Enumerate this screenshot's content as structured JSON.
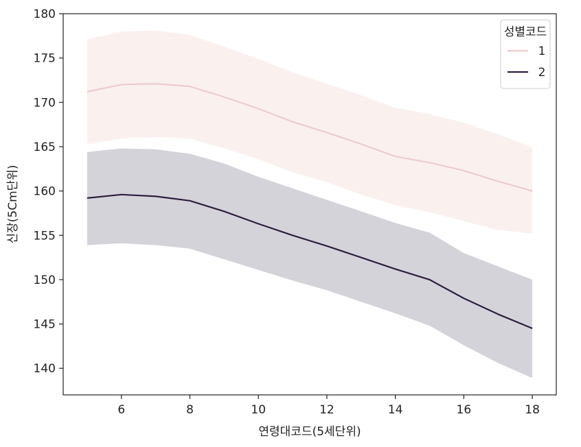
{
  "chart_data": {
    "type": "line",
    "xlabel": "연령대코드(5세단위)",
    "ylabel": "신장(5Cm단위)",
    "xlim": [
      4.3,
      18.7
    ],
    "ylim": [
      137,
      180
    ],
    "xticks": [
      6,
      8,
      10,
      12,
      14,
      16,
      18
    ],
    "yticks": [
      140,
      145,
      150,
      155,
      160,
      165,
      170,
      175,
      180
    ],
    "grid": false,
    "legend": {
      "title": "성별코드",
      "placement": "top-right"
    },
    "x": [
      5,
      6,
      7,
      8,
      9,
      10,
      11,
      12,
      13,
      14,
      15,
      16,
      17,
      18
    ],
    "series": [
      {
        "name": "1",
        "color": "#eccccc",
        "band_color": "#f6e6e2",
        "values": [
          171.2,
          172.0,
          172.1,
          171.8,
          170.6,
          169.3,
          167.8,
          166.6,
          165.3,
          163.9,
          163.2,
          162.3,
          161.1,
          160.0
        ],
        "lower": [
          165.3,
          165.9,
          166.1,
          165.9,
          164.8,
          163.6,
          162.1,
          161.0,
          159.6,
          158.4,
          157.6,
          156.6,
          155.6,
          155.2
        ],
        "upper": [
          177.1,
          178.0,
          178.1,
          177.6,
          176.3,
          174.9,
          173.4,
          172.1,
          170.8,
          169.4,
          168.7,
          167.7,
          166.4,
          164.9
        ]
      },
      {
        "name": "2",
        "color": "#2d1e3e",
        "band_color": "#b3afbb",
        "values": [
          159.2,
          159.6,
          159.4,
          158.9,
          157.7,
          156.3,
          155.0,
          153.8,
          152.5,
          151.2,
          150.0,
          147.9,
          146.1,
          144.5
        ],
        "lower": [
          153.9,
          154.1,
          153.9,
          153.5,
          152.3,
          151.1,
          149.9,
          148.8,
          147.5,
          146.2,
          144.8,
          142.6,
          140.6,
          138.9
        ],
        "upper": [
          164.4,
          164.8,
          164.7,
          164.2,
          163.1,
          161.6,
          160.3,
          159.0,
          157.7,
          156.4,
          155.3,
          153.0,
          151.5,
          150.0
        ]
      }
    ]
  }
}
